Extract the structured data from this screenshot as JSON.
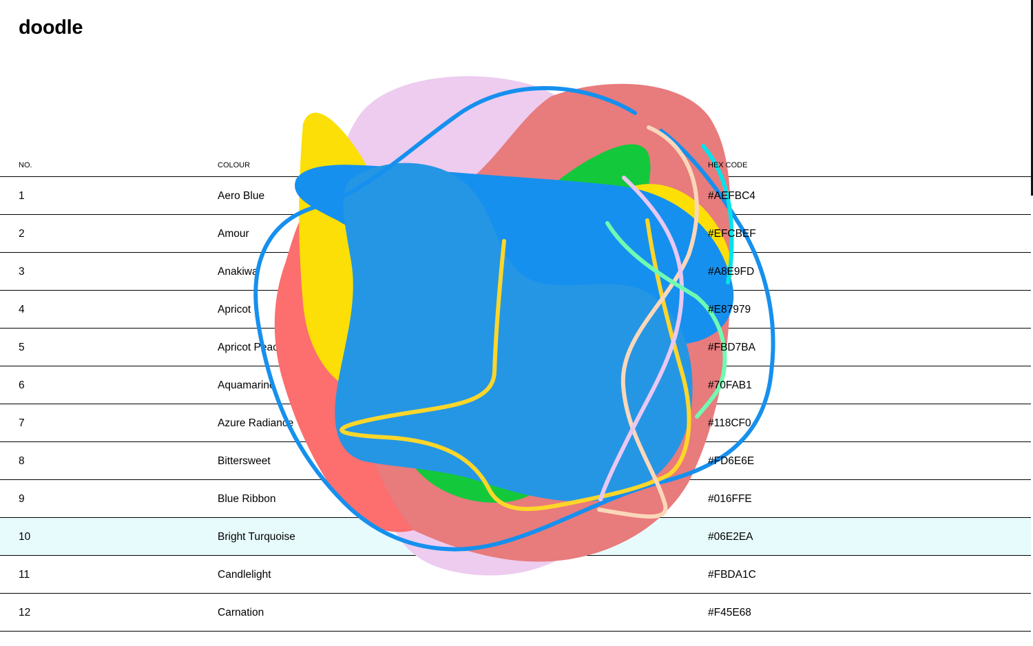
{
  "app": {
    "title": "doodle"
  },
  "table": {
    "headers": {
      "number": "NO.",
      "colour": "COLOUR",
      "hex": "HEX CODE"
    },
    "rows": [
      {
        "no": "1",
        "name": "Aero Blue",
        "hex": "#AEFBC4"
      },
      {
        "no": "2",
        "name": "Amour",
        "hex": "#EFCBEF"
      },
      {
        "no": "3",
        "name": "Anakiwa",
        "hex": "#A8E9FD"
      },
      {
        "no": "4",
        "name": "Apricot",
        "hex": "#E87979"
      },
      {
        "no": "5",
        "name": "Apricot Peach",
        "hex": "#FBD7BA"
      },
      {
        "no": "6",
        "name": "Aquamarine",
        "hex": "#70FAB1"
      },
      {
        "no": "7",
        "name": "Azure Radiance",
        "hex": "#118CF0"
      },
      {
        "no": "8",
        "name": "Bittersweet",
        "hex": "#FD6E6E"
      },
      {
        "no": "9",
        "name": "Blue Ribbon",
        "hex": "#016FFE"
      },
      {
        "no": "10",
        "name": "Bright Turquoise",
        "hex": "#06E2EA"
      },
      {
        "no": "11",
        "name": "Candlelight",
        "hex": "#FBDA1C"
      },
      {
        "no": "12",
        "name": "Carnation",
        "hex": "#F45E68"
      }
    ],
    "highlighted_row": 10,
    "highlight_color": "#e8fbfc"
  },
  "doodle_colors": {
    "amour": "#EFCBEF",
    "apricot": "#E87979",
    "bittersweet": "#FD6E6E",
    "candlelight": "#FBDA1C",
    "green": "#14C83C",
    "azure_radiance": "#118CF0",
    "blue_fill": "#2394E3",
    "apricot_peach": "#FBD7BA",
    "aquamarine": "#70FAB1",
    "bright_turquoise": "#06E2EA",
    "lilac": "#E8C8F2",
    "yellow_stroke": "#FDD62A"
  }
}
